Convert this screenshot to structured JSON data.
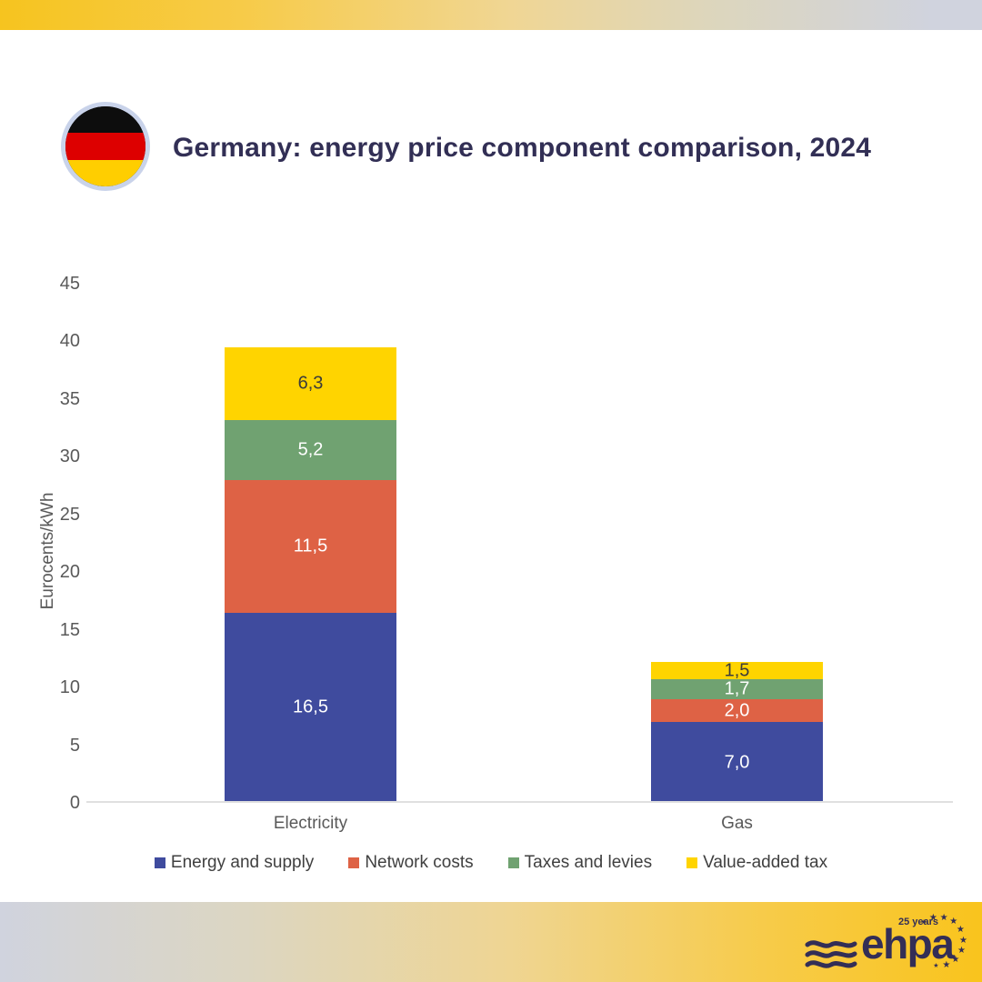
{
  "header": {
    "title": "Germany: energy price component comparison, 2024",
    "flag": {
      "name": "germany-flag",
      "stripe_colors": [
        "#0d0d0d",
        "#dd0000",
        "#ffce00"
      ],
      "ring_color": "#c9d3ea"
    }
  },
  "chart_data": {
    "type": "bar",
    "stacked": true,
    "title": "Germany: energy price component comparison, 2024",
    "categories": [
      "Electricity",
      "Gas"
    ],
    "series": [
      {
        "name": "Energy and supply",
        "color": "#3f4b9e",
        "values": [
          16.5,
          7.0
        ],
        "labels": [
          "16,5",
          "7,0"
        ],
        "label_color": "#ffffff"
      },
      {
        "name": "Network costs",
        "color": "#de6245",
        "values": [
          11.5,
          2.0
        ],
        "labels": [
          "11,5",
          "2,0"
        ],
        "label_color": "#ffffff"
      },
      {
        "name": "Taxes and levies",
        "color": "#70a271",
        "values": [
          5.2,
          1.7
        ],
        "labels": [
          "5,2",
          "1,7"
        ],
        "label_color": "#ffffff"
      },
      {
        "name": "Value-added tax",
        "color": "#ffd400",
        "values": [
          6.3,
          1.5
        ],
        "labels": [
          "6,3",
          "1,5"
        ],
        "label_color": "#3b3b3b"
      }
    ],
    "totals": [
      39.5,
      12.2
    ],
    "xlabel": "",
    "ylabel": "Eurocents/kWh",
    "ylim": [
      0,
      45
    ],
    "ytick_step": 5,
    "yticks": [
      0,
      5,
      10,
      15,
      20,
      25,
      30,
      35,
      40,
      45
    ],
    "grid": false,
    "legend_position": "bottom"
  },
  "footer": {
    "logo_text": "ehpa",
    "logo_badge": "25 years",
    "logo_color": "#332e56",
    "stars_count": 10
  },
  "colors": {
    "title_text": "#322f55",
    "axis_text": "#595959",
    "legend_text": "#404040",
    "band_gold": "#f6c41f",
    "band_gray": "#d0d3de"
  }
}
